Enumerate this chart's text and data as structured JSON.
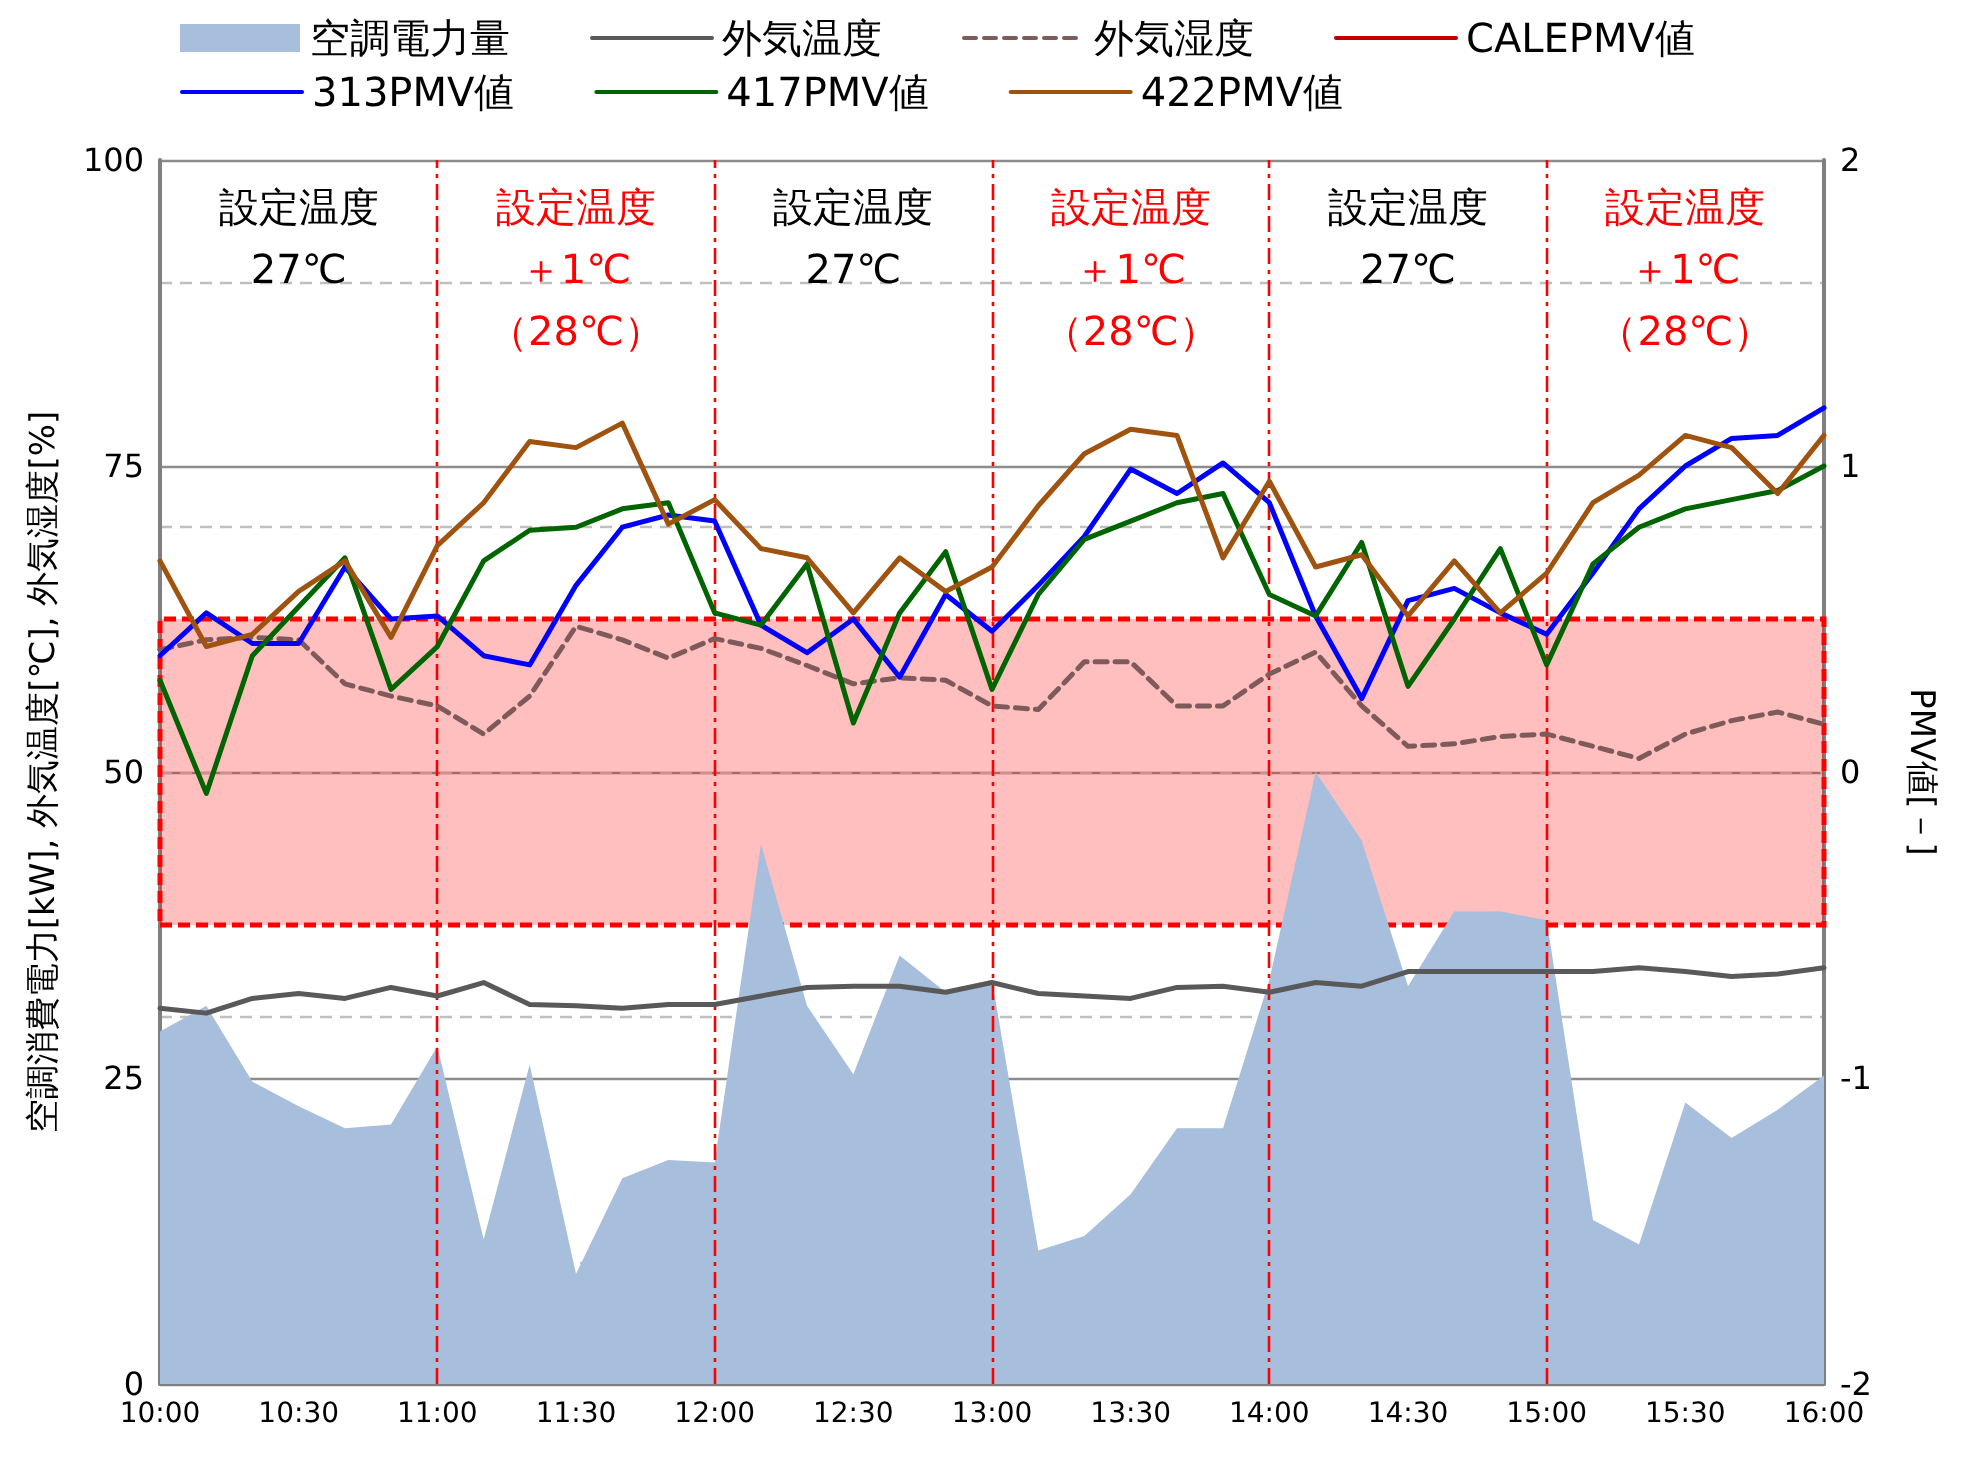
{
  "chart_data": {
    "type": "line",
    "xlabel": null,
    "ylabel": "空調消費電力[kW], 外気温度[℃], 外気湿度[%]",
    "y2label": "PMV値[－]",
    "x": [
      10,
      10.167,
      10.333,
      10.5,
      10.667,
      10.833,
      11,
      11.167,
      11.333,
      11.5,
      11.667,
      11.833,
      12,
      12.167,
      12.333,
      12.5,
      12.667,
      12.833,
      13,
      13.167,
      13.333,
      13.5,
      13.667,
      13.833,
      14,
      14.167,
      14.333,
      14.5,
      14.667,
      14.833,
      15,
      15.167,
      15.333,
      15.5,
      15.667,
      15.833,
      16
    ],
    "xlim": [
      10,
      16
    ],
    "xticks": [
      {
        "value": 10,
        "label": "10:00"
      },
      {
        "value": 10.5,
        "label": "10:30"
      },
      {
        "value": 11,
        "label": "11:00"
      },
      {
        "value": 11.5,
        "label": "11:30"
      },
      {
        "value": 12,
        "label": "12:00"
      },
      {
        "value": 12.5,
        "label": "12:30"
      },
      {
        "value": 13,
        "label": "13:00"
      },
      {
        "value": 13.5,
        "label": "13:30"
      },
      {
        "value": 14,
        "label": "14:00"
      },
      {
        "value": 14.5,
        "label": "14:30"
      },
      {
        "value": 15,
        "label": "15:00"
      },
      {
        "value": 15.5,
        "label": "15:30"
      },
      {
        "value": 16,
        "label": "16:00"
      }
    ],
    "ylim": [
      0,
      100
    ],
    "yticks": [
      0,
      25,
      50,
      75,
      100
    ],
    "y2lim": [
      -2,
      2
    ],
    "y2ticks": [
      -2,
      -1,
      0,
      1,
      2
    ],
    "grid": "y",
    "legend": "top",
    "marker": "none",
    "series": [
      {
        "name": "空調電力量",
        "type": "area",
        "color": "#a7bedc",
        "values": [
          28.8,
          30.9,
          24.7,
          22.7,
          20.9,
          21.2,
          27.6,
          11.8,
          26.1,
          9.0,
          16.8,
          18.3,
          18.1,
          44.1,
          30.9,
          25.3,
          35.0,
          32.0,
          33.0,
          10.9,
          12.1,
          15.5,
          20.9,
          20.9,
          33.0,
          50.0,
          44.4,
          32.5,
          38.6,
          38.6,
          37.9,
          13.4,
          11.4,
          23.0,
          20.1,
          22.4,
          25.2
        ]
      },
      {
        "name": "外気温度",
        "type": "line",
        "color": "#595959",
        "values": [
          30.7,
          30.3,
          31.5,
          31.9,
          31.5,
          32.4,
          31.7,
          32.8,
          31.0,
          30.9,
          30.7,
          31.0,
          31.0,
          31.7,
          32.4,
          32.5,
          32.5,
          32.0,
          32.8,
          31.9,
          31.7,
          31.5,
          32.4,
          32.5,
          32.0,
          32.8,
          32.5,
          33.7,
          33.7,
          33.7,
          33.7,
          33.7,
          34.0,
          33.7,
          33.3,
          33.5,
          34.0
        ]
      },
      {
        "name": "外気湿度",
        "type": "line",
        "line_style": "dashed",
        "color": "#7f5a5a",
        "values": [
          60.0,
          60.8,
          61.0,
          60.8,
          57.2,
          56.2,
          55.4,
          53.1,
          56.2,
          61.9,
          60.8,
          59.3,
          60.9,
          60.1,
          58.7,
          57.2,
          57.7,
          57.5,
          55.4,
          55.1,
          59.0,
          59.0,
          55.4,
          55.4,
          58.0,
          59.8,
          55.4,
          52.1,
          52.3,
          52.9,
          53.1,
          52.1,
          51.1,
          53.1,
          54.2,
          54.9,
          53.9
        ]
      },
      {
        "name": "CALEPMV値",
        "type": "line",
        "axis": "y2",
        "color": "#c00000",
        "values": [
          null,
          null,
          null,
          null,
          null,
          null,
          null,
          null,
          null,
          null,
          null,
          null,
          null,
          null,
          null,
          null,
          null,
          null,
          null,
          null,
          null,
          null,
          null,
          null,
          null,
          null,
          null,
          null,
          null,
          null,
          null,
          null,
          null,
          null,
          null,
          null,
          null
        ]
      },
      {
        "name": "313PMV値",
        "type": "line",
        "axis": "y2",
        "color": "#0000ff",
        "values": [
          0.38,
          0.52,
          0.42,
          0.42,
          0.67,
          0.5,
          0.51,
          0.38,
          0.35,
          0.61,
          0.8,
          0.84,
          0.82,
          0.48,
          0.39,
          0.5,
          0.31,
          0.58,
          0.46,
          0.61,
          0.77,
          0.99,
          0.91,
          1.01,
          0.88,
          0.51,
          0.24,
          0.56,
          0.6,
          0.52,
          0.45,
          0.65,
          0.86,
          1.0,
          1.09,
          1.1,
          1.19
        ]
      },
      {
        "name": "417PMV値",
        "type": "line",
        "axis": "y2",
        "color": "#006400",
        "values": [
          0.3,
          -0.07,
          0.38,
          0.54,
          0.7,
          0.27,
          0.41,
          0.69,
          0.79,
          0.8,
          0.86,
          0.88,
          0.52,
          0.48,
          0.68,
          0.16,
          0.52,
          0.72,
          0.27,
          0.58,
          0.76,
          0.82,
          0.88,
          0.91,
          0.58,
          0.51,
          0.75,
          0.28,
          0.5,
          0.73,
          0.35,
          0.68,
          0.8,
          0.86,
          0.89,
          0.92,
          1.0
        ]
      },
      {
        "name": "422PMV値",
        "type": "line",
        "axis": "y2",
        "color": "#a0520f",
        "values": [
          0.69,
          0.41,
          0.45,
          0.59,
          0.69,
          0.44,
          0.74,
          0.88,
          1.08,
          1.06,
          1.14,
          0.81,
          0.89,
          0.73,
          0.7,
          0.52,
          0.7,
          0.59,
          0.67,
          0.87,
          1.04,
          1.12,
          1.1,
          0.7,
          0.95,
          0.67,
          0.71,
          0.51,
          0.69,
          0.52,
          0.65,
          0.88,
          0.97,
          1.1,
          1.06,
          0.91,
          1.1
        ]
      }
    ],
    "ref_lines": [
      {
        "axis": "x",
        "value": 11,
        "color": "#ff0000",
        "line_style": "dashed"
      },
      {
        "axis": "x",
        "value": 12,
        "color": "#ff0000",
        "line_style": "dashed"
      },
      {
        "axis": "x",
        "value": 13,
        "color": "#ff0000",
        "line_style": "dashed"
      },
      {
        "axis": "x",
        "value": 14,
        "color": "#ff0000",
        "line_style": "dashed"
      },
      {
        "axis": "x",
        "value": 15,
        "color": "#ff0000",
        "line_style": "dashed"
      }
    ],
    "bands": [
      {
        "axis": "y2",
        "from": -0.5,
        "to": 0.5,
        "color": "#ff0000"
      }
    ],
    "annotations": [
      "設定温度27℃",
      "設定温度＋1℃（28℃）",
      "設定温度27℃",
      "設定温度＋1℃（28℃）",
      "設定温度27℃",
      "設定温度＋1℃（28℃）"
    ]
  }
}
